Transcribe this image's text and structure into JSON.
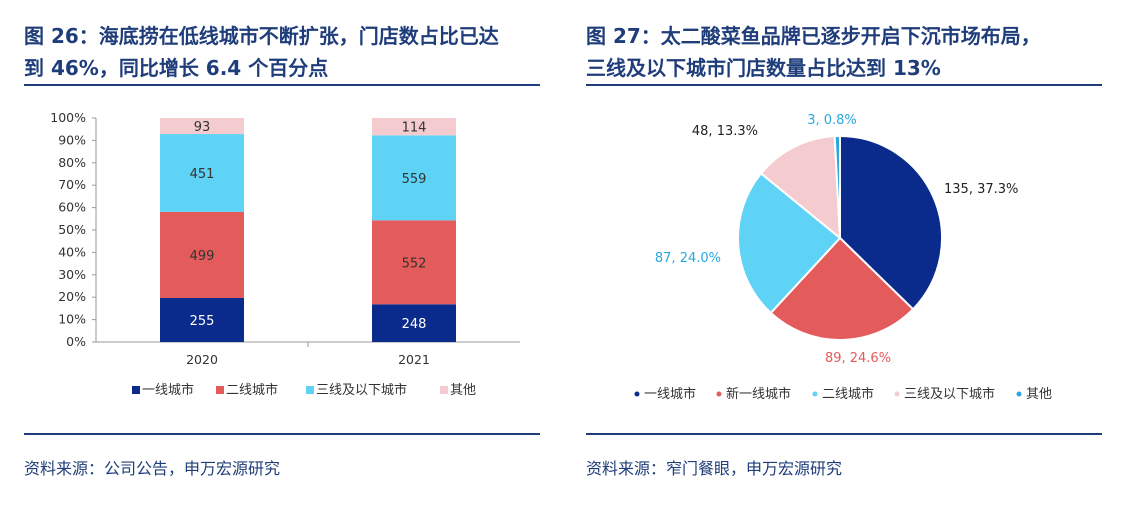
{
  "left": {
    "title_line1": "图 26：海底捞在低线城市不断扩张，门店数占比已达",
    "title_line2": "到 46%，同比增长 6.4 个百分点",
    "source": "资料来源：公司公告，申万宏源研究"
  },
  "right": {
    "title_line1": "图 27：太二酸菜鱼品牌已逐步开启下沉市场布局，",
    "title_line2": "三线及以下城市门店数量占比达到 13%",
    "source": "资料来源：窄门餐眼，申万宏源研究"
  },
  "chart_data": [
    {
      "type": "bar",
      "stacked": true,
      "normalized": true,
      "categories": [
        "2020",
        "2021"
      ],
      "series": [
        {
          "name": "一线城市",
          "values": [
            255,
            248
          ],
          "color": "#0a2a8c"
        },
        {
          "name": "二线城市",
          "values": [
            499,
            552
          ],
          "color": "#e45b5b"
        },
        {
          "name": "三线及以下城市",
          "values": [
            451,
            559
          ],
          "color": "#5fd3f5"
        },
        {
          "name": "其他",
          "values": [
            93,
            114
          ],
          "color": "#f4cccf"
        }
      ],
      "yticks": [
        "0%",
        "10%",
        "20%",
        "30%",
        "40%",
        "50%",
        "60%",
        "70%",
        "80%",
        "90%",
        "100%"
      ],
      "ylim": [
        0,
        100
      ],
      "legend": "bottom"
    },
    {
      "type": "pie",
      "slices": [
        {
          "name": "一线城市",
          "value": 135,
          "label": "135, 37.3%",
          "color": "#0a2a8c"
        },
        {
          "name": "新一线城市",
          "value": 89,
          "label": "89, 24.6%",
          "color": "#e45b5b"
        },
        {
          "name": "二线城市",
          "value": 87,
          "label": "87, 24.0%",
          "color": "#5fd3f5"
        },
        {
          "name": "三线及以下城市",
          "value": 48,
          "label": "48, 13.3%",
          "color": "#f4cccf"
        },
        {
          "name": "其他",
          "value": 3,
          "label": "3, 0.8%",
          "color": "#29a8e0"
        }
      ],
      "legend": "bottom"
    }
  ]
}
